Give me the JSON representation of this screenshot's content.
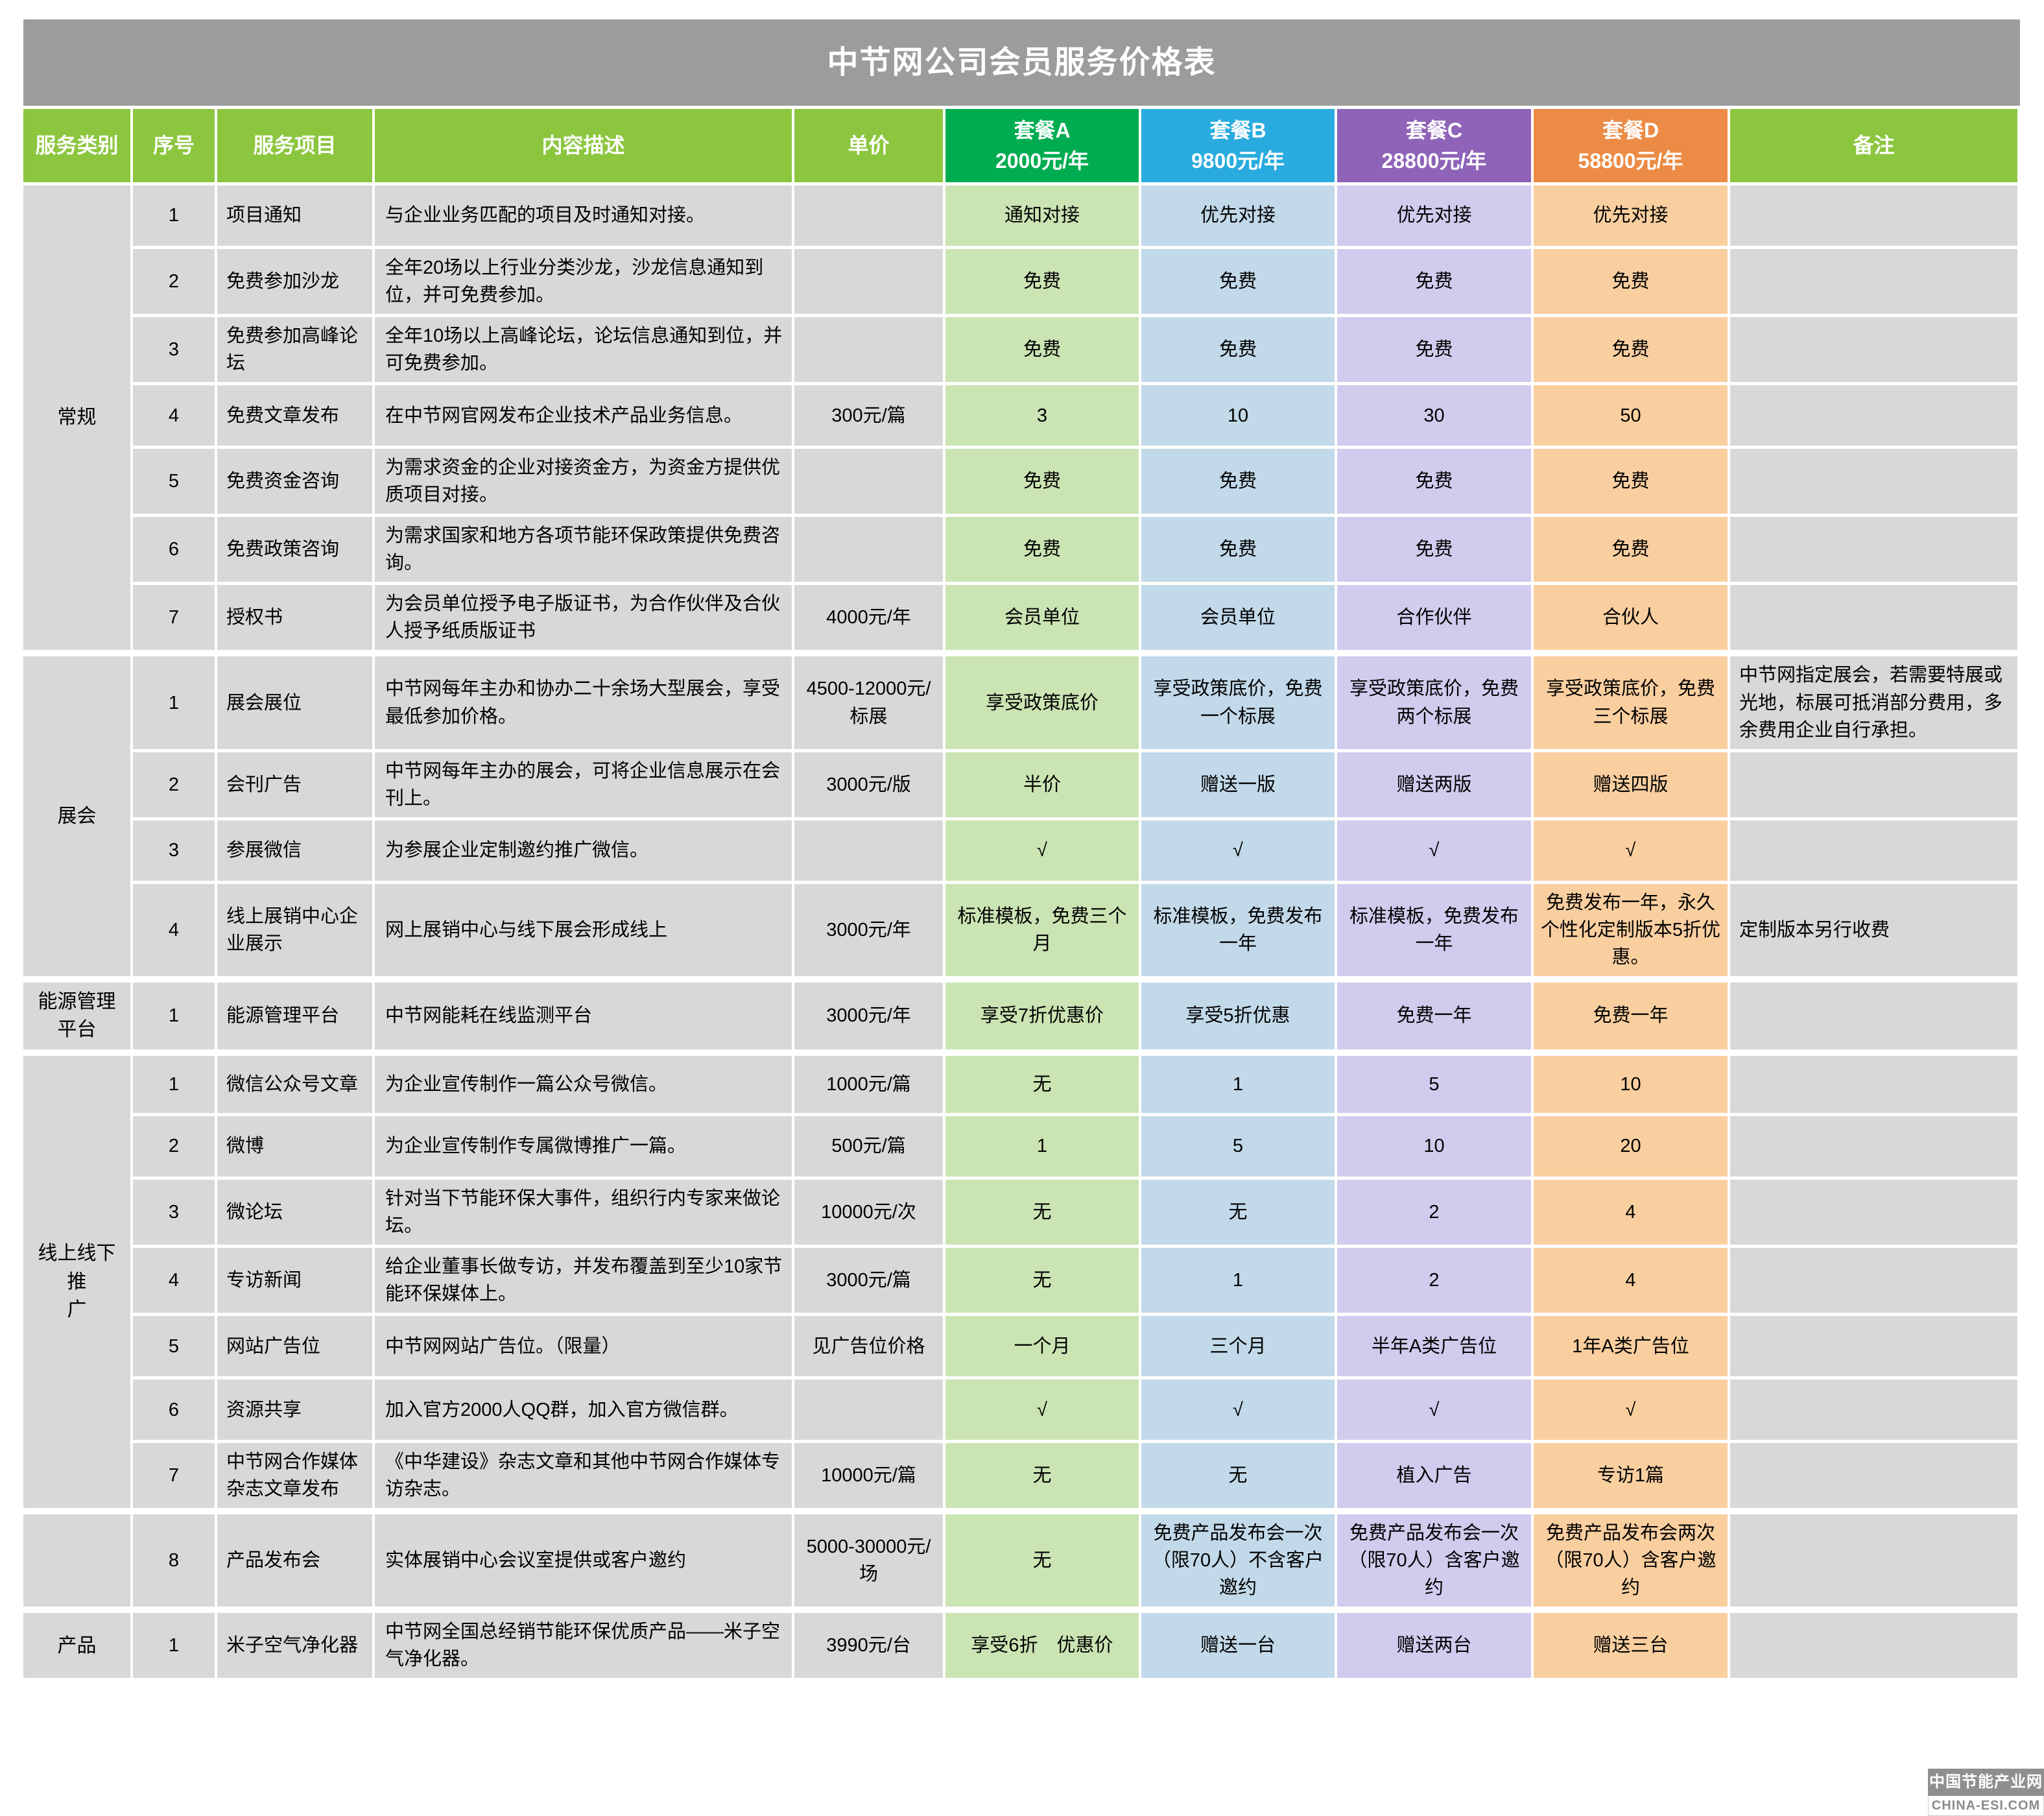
{
  "title": "中节网公司会员服务价格表",
  "colors": {
    "title_bar_gray": "#9C9C9C",
    "header_green": "#8CC63F",
    "pkg_a": "#00AC50",
    "pkg_b": "#29ABDF",
    "pkg_c": "#8F63B8",
    "pkg_d": "#EC8B45",
    "cell_gray": "#D8D8D8",
    "cell_a": "#CBE4B3",
    "cell_b": "#C2D9E9",
    "cell_c": "#D2CBEE",
    "cell_d": "#FACFA0"
  },
  "table": {
    "columns": {
      "category": "服务类别",
      "index": "序号",
      "item": "服务项目",
      "description": "内容描述",
      "unit_price": "单价",
      "packages": [
        {
          "name": "套餐A",
          "price": "2000元/年"
        },
        {
          "name": "套餐B",
          "price": "9800元/年"
        },
        {
          "name": "套餐C",
          "price": "28800元/年"
        },
        {
          "name": "套餐D",
          "price": "58800元/年"
        }
      ],
      "remark": "备注"
    },
    "groups": [
      {
        "category": "常规",
        "rows": [
          {
            "no": "1",
            "item": "项目通知",
            "desc": "与企业业务匹配的项目及时通知对接。",
            "price": "",
            "a": "通知对接",
            "b": "优先对接",
            "c": "优先对接",
            "d": "优先对接",
            "remark": ""
          },
          {
            "no": "2",
            "item": "免费参加沙龙",
            "desc": "全年20场以上行业分类沙龙，沙龙信息通知到位，并可免费参加。",
            "price": "",
            "a": "免费",
            "b": "免费",
            "c": "免费",
            "d": "免费",
            "remark": ""
          },
          {
            "no": "3",
            "item": "免费参加高峰论坛",
            "desc": "全年10场以上高峰论坛，论坛信息通知到位，并可免费参加。",
            "price": "",
            "a": "免费",
            "b": "免费",
            "c": "免费",
            "d": "免费",
            "remark": ""
          },
          {
            "no": "4",
            "item": "免费文章发布",
            "desc": "在中节网官网发布企业技术产品业务信息。",
            "price": "300元/篇",
            "a": "3",
            "b": "10",
            "c": "30",
            "d": "50",
            "remark": ""
          },
          {
            "no": "5",
            "item": "免费资金咨询",
            "desc": "为需求资金的企业对接资金方，为资金方提供优质项目对接。",
            "price": "",
            "a": "免费",
            "b": "免费",
            "c": "免费",
            "d": "免费",
            "remark": ""
          },
          {
            "no": "6",
            "item": "免费政策咨询",
            "desc": "为需求国家和地方各项节能环保政策提供免费咨询。",
            "price": "",
            "a": "免费",
            "b": "免费",
            "c": "免费",
            "d": "免费",
            "remark": ""
          },
          {
            "no": "7",
            "item": "授权书",
            "desc": "为会员单位授予电子版证书，为合作伙伴及合伙人授予纸质版证书",
            "price": "4000元/年",
            "a": "会员单位",
            "b": "会员单位",
            "c": "合作伙伴",
            "d": "合伙人",
            "remark": ""
          }
        ]
      },
      {
        "category": "展会",
        "rows": [
          {
            "no": "1",
            "item": "展会展位",
            "desc": "中节网每年主办和协办二十余场大型展会，享受最低参加价格。",
            "price": "4500-12000元/标展",
            "a": "享受政策底价",
            "b": "享受政策底价，免费一个标展",
            "c": "享受政策底价，免费两个标展",
            "d": "享受政策底价，免费三个标展",
            "remark": "中节网指定展会，若需要特展或光地，标展可抵消部分费用，多余费用企业自行承担。"
          },
          {
            "no": "2",
            "item": "会刊广告",
            "desc": "中节网每年主办的展会，可将企业信息展示在会刊上。",
            "price": "3000元/版",
            "a": "半价",
            "b": "赠送一版",
            "c": "赠送两版",
            "d": "赠送四版",
            "remark": ""
          },
          {
            "no": "3",
            "item": "参展微信",
            "desc": "为参展企业定制邀约推广微信。",
            "price": "",
            "a": "√",
            "b": "√",
            "c": "√",
            "d": "√",
            "remark": ""
          },
          {
            "no": "4",
            "item": "线上展销中心企业展示",
            "desc": "网上展销中心与线下展会形成线上",
            "price": "3000元/年",
            "a": "标准模板，免费三个月",
            "b": "标准模板，免费发布一年",
            "c": "标准模板，免费发布一年",
            "d": "免费发布一年，永久个性化定制版本5折优惠。",
            "remark": "定制版本另行收费"
          }
        ]
      },
      {
        "category": "能源管理\n平台",
        "rows": [
          {
            "no": "1",
            "item": "能源管理平台",
            "desc": "中节网能耗在线监测平台",
            "price": "3000元/年",
            "a": "享受7折优惠价",
            "b": "享受5折优惠",
            "c": "免费一年",
            "d": "免费一年",
            "remark": ""
          }
        ]
      },
      {
        "category": "线上线下推\n广",
        "rows": [
          {
            "no": "1",
            "item": "微信公众号文章",
            "desc": "为企业宣传制作一篇公众号微信。",
            "price": "1000元/篇",
            "a": "无",
            "b": "1",
            "c": "5",
            "d": "10",
            "remark": ""
          },
          {
            "no": "2",
            "item": "微博",
            "desc": "为企业宣传制作专属微博推广一篇。",
            "price": "500元/篇",
            "a": "1",
            "b": "5",
            "c": "10",
            "d": "20",
            "remark": ""
          },
          {
            "no": "3",
            "item": "微论坛",
            "desc": "针对当下节能环保大事件，组织行内专家来做论坛。",
            "price": "10000元/次",
            "a": "无",
            "b": "无",
            "c": "2",
            "d": "4",
            "remark": ""
          },
          {
            "no": "4",
            "item": "专访新闻",
            "desc": "给企业董事长做专访，并发布覆盖到至少10家节能环保媒体上。",
            "price": "3000元/篇",
            "a": "无",
            "b": "1",
            "c": "2",
            "d": "4",
            "remark": ""
          },
          {
            "no": "5",
            "item": "网站广告位",
            "desc": "中节网网站广告位。（限量）",
            "price": "见广告位价格",
            "a": "一个月",
            "b": "三个月",
            "c": "半年A类广告位",
            "d": "1年A类广告位",
            "remark": ""
          },
          {
            "no": "6",
            "item": "资源共享",
            "desc": "加入官方2000人QQ群，加入官方微信群。",
            "price": "",
            "a": "√",
            "b": "√",
            "c": "√",
            "d": "√",
            "remark": ""
          },
          {
            "no": "7",
            "item": "中节网合作媒体杂志文章发布",
            "desc": "《中华建设》杂志文章和其他中节网合作媒体专访杂志。",
            "price": "10000元/篇",
            "a": "无",
            "b": "无",
            "c": "植入广告",
            "d": "专访1篇",
            "remark": ""
          }
        ]
      },
      {
        "category": "",
        "rows": [
          {
            "no": "8",
            "item": "产品发布会",
            "desc": "实体展销中心会议室提供或客户邀约",
            "price": "5000-30000元/场",
            "a": "无",
            "b": "免费产品发布会一次（限70人）不含客户邀约",
            "c": "免费产品发布会一次（限70人）含客户邀约",
            "d": "免费产品发布会两次（限70人）含客户邀约",
            "remark": ""
          }
        ]
      },
      {
        "category": "产品",
        "rows": [
          {
            "no": "1",
            "item": "米子空气净化器",
            "desc": "中节网全国总经销节能环保优质产品——米子空气净化器。",
            "price": "3990元/台",
            "a": "享受6折　优惠价",
            "b": "赠送一台",
            "c": "赠送两台",
            "d": "赠送三台",
            "remark": ""
          }
        ]
      }
    ]
  },
  "watermark": {
    "line1": "中国节能产业网",
    "line2": "CHINA-ESI.COM"
  }
}
